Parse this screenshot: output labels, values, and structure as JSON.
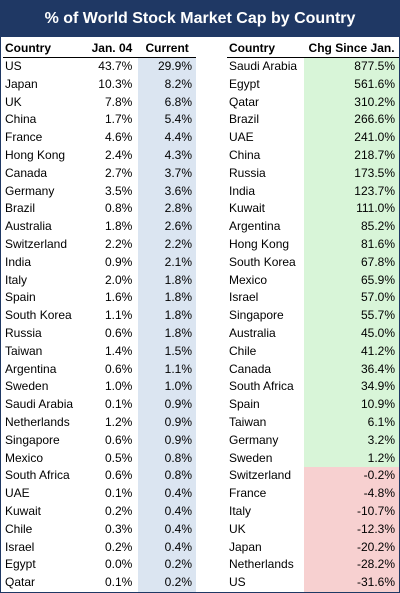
{
  "title": "% of World Stock Market Cap by Country",
  "colors": {
    "header_bg": "#1f3864",
    "current_bg": "#dbe5f1",
    "pos_bg": "#d8f5d8",
    "neg_bg": "#f7d0d0"
  },
  "chart_data": [
    {
      "type": "table",
      "columns": [
        "Country",
        "Jan. 04",
        "Current"
      ],
      "rows": [
        [
          "US",
          "43.7%",
          "29.9%"
        ],
        [
          "Japan",
          "10.3%",
          "8.2%"
        ],
        [
          "UK",
          "7.8%",
          "6.8%"
        ],
        [
          "China",
          "1.7%",
          "5.4%"
        ],
        [
          "France",
          "4.6%",
          "4.4%"
        ],
        [
          "Hong Kong",
          "2.4%",
          "4.3%"
        ],
        [
          "Canada",
          "2.7%",
          "3.7%"
        ],
        [
          "Germany",
          "3.5%",
          "3.6%"
        ],
        [
          "Brazil",
          "0.8%",
          "2.8%"
        ],
        [
          "Australia",
          "1.8%",
          "2.6%"
        ],
        [
          "Switzerland",
          "2.2%",
          "2.2%"
        ],
        [
          "India",
          "0.9%",
          "2.1%"
        ],
        [
          "Italy",
          "2.0%",
          "1.8%"
        ],
        [
          "Spain",
          "1.6%",
          "1.8%"
        ],
        [
          "South Korea",
          "1.1%",
          "1.8%"
        ],
        [
          "Russia",
          "0.6%",
          "1.8%"
        ],
        [
          "Taiwan",
          "1.4%",
          "1.5%"
        ],
        [
          "Argentina",
          "0.6%",
          "1.1%"
        ],
        [
          "Sweden",
          "1.0%",
          "1.0%"
        ],
        [
          "Saudi Arabia",
          "0.1%",
          "0.9%"
        ],
        [
          "Netherlands",
          "1.2%",
          "0.9%"
        ],
        [
          "Singapore",
          "0.6%",
          "0.9%"
        ],
        [
          "Mexico",
          "0.5%",
          "0.8%"
        ],
        [
          "South Africa",
          "0.6%",
          "0.8%"
        ],
        [
          "UAE",
          "0.1%",
          "0.4%"
        ],
        [
          "Kuwait",
          "0.2%",
          "0.4%"
        ],
        [
          "Chile",
          "0.3%",
          "0.4%"
        ],
        [
          "Israel",
          "0.2%",
          "0.4%"
        ],
        [
          "Egypt",
          "0.0%",
          "0.2%"
        ],
        [
          "Qatar",
          "0.1%",
          "0.2%"
        ]
      ]
    },
    {
      "type": "table",
      "columns": [
        "Country",
        "Chg Since Jan. 04"
      ],
      "rows": [
        [
          "Saudi Arabia",
          "877.5%"
        ],
        [
          "Egypt",
          "561.6%"
        ],
        [
          "Qatar",
          "310.2%"
        ],
        [
          "Brazil",
          "266.6%"
        ],
        [
          "UAE",
          "241.0%"
        ],
        [
          "China",
          "218.7%"
        ],
        [
          "Russia",
          "173.5%"
        ],
        [
          "India",
          "123.7%"
        ],
        [
          "Kuwait",
          "111.0%"
        ],
        [
          "Argentina",
          "85.2%"
        ],
        [
          "Hong Kong",
          "81.6%"
        ],
        [
          "South Korea",
          "67.8%"
        ],
        [
          "Mexico",
          "65.9%"
        ],
        [
          "Israel",
          "57.0%"
        ],
        [
          "Singapore",
          "55.7%"
        ],
        [
          "Australia",
          "45.0%"
        ],
        [
          "Chile",
          "41.2%"
        ],
        [
          "Canada",
          "36.4%"
        ],
        [
          "South Africa",
          "34.9%"
        ],
        [
          "Spain",
          "10.9%"
        ],
        [
          "Taiwan",
          "6.1%"
        ],
        [
          "Germany",
          "3.2%"
        ],
        [
          "Sweden",
          "1.2%"
        ],
        [
          "Switzerland",
          "-0.2%"
        ],
        [
          "France",
          "-4.8%"
        ],
        [
          "Italy",
          "-10.7%"
        ],
        [
          "UK",
          "-12.3%"
        ],
        [
          "Japan",
          "-20.2%"
        ],
        [
          "Netherlands",
          "-28.2%"
        ],
        [
          "US",
          "-31.6%"
        ]
      ]
    }
  ]
}
